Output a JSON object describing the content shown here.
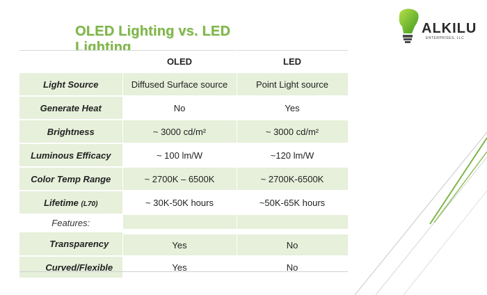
{
  "title": "OLED Lighting  vs.  LED Lighting",
  "logo": {
    "name": "ALKILU",
    "sub": "ENTERPRISES, LLC"
  },
  "table": {
    "headers": [
      "",
      "OLED",
      "LED"
    ],
    "rows": [
      {
        "label": "Light Source",
        "oled": "Diffused Surface source",
        "led": "Point Light source"
      },
      {
        "label": "Generate Heat",
        "oled": "No",
        "led": "Yes"
      },
      {
        "label": "Brightness",
        "oled": "~ 3000 cd/m²",
        "led": "~ 3000 cd/m²"
      },
      {
        "label": "Luminous Efficacy",
        "oled": "~ 100 lm/W",
        "led": "~120 lm/W"
      },
      {
        "label": "Color Temp Range",
        "oled": "~ 2700K – 6500K",
        "led": "~ 2700K-6500K"
      },
      {
        "label": "Lifetime",
        "label_note": "(L70)",
        "oled": "~ 30K-50K hours",
        "led": "~50K-65K hours"
      }
    ],
    "features_label": "Features:",
    "feature_rows": [
      {
        "label": "Transparency",
        "oled": "Yes",
        "led": "No"
      },
      {
        "label": "Curved/Flexible",
        "oled": "Yes",
        "led": "No"
      }
    ]
  },
  "colors": {
    "accent_green": "#7fb54a",
    "row_tint": "#e6f0da"
  }
}
